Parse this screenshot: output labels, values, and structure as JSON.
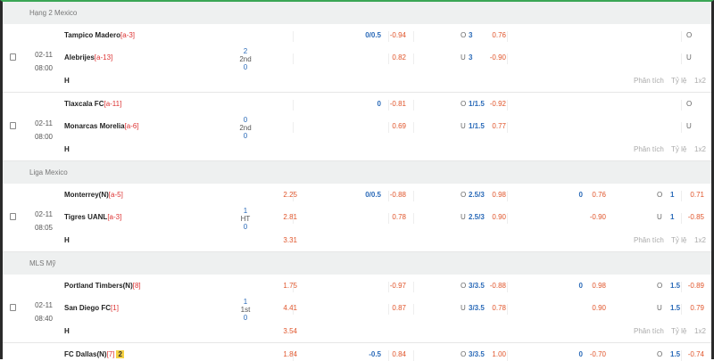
{
  "actions": {
    "analysis": "Phân tích",
    "odds": "Tỷ lệ",
    "x12": "1x2"
  },
  "blocks": [
    {
      "type": "section",
      "title": "Hạng 2 Mexico"
    },
    {
      "type": "match",
      "date": "02-11",
      "time": "08:00",
      "score": {
        "home": "2",
        "status": "2nd",
        "away": "0"
      },
      "lines": [
        {
          "team": "Tampico Madero",
          "rank": "[a-3]",
          "x12": "",
          "hdp_line": "0/0.5",
          "hdp_odds": "-0.94",
          "ou_label": "O",
          "ou_line": "3",
          "ou_odds": "0.76",
          "h1_hdp_line": "",
          "h1_hdp_odds": "",
          "h1_ou_label": "O",
          "h1_ou_line": "",
          "h1_ou_odds": ""
        },
        {
          "team": "Alebrijes",
          "rank": "[a-13]",
          "x12": "",
          "hdp_line": "",
          "hdp_odds": "0.82",
          "ou_label": "U",
          "ou_line": "3",
          "ou_odds": "-0.90",
          "h1_hdp_line": "",
          "h1_hdp_odds": "",
          "h1_ou_label": "U",
          "h1_ou_line": "",
          "h1_ou_odds": ""
        },
        {
          "team": "H",
          "rank": "",
          "x12": ""
        }
      ]
    },
    {
      "type": "match",
      "date": "02-11",
      "time": "08:00",
      "score": {
        "home": "0",
        "status": "2nd",
        "away": "0"
      },
      "lines": [
        {
          "team": "Tlaxcala FC",
          "rank": "[a-11]",
          "x12": "",
          "hdp_line": "0",
          "hdp_odds": "-0.81",
          "ou_label": "O",
          "ou_line": "1/1.5",
          "ou_odds": "-0.92",
          "h1_hdp_line": "",
          "h1_hdp_odds": "",
          "h1_ou_label": "O",
          "h1_ou_line": "",
          "h1_ou_odds": ""
        },
        {
          "team": "Monarcas Morelia",
          "rank": "[a-6]",
          "x12": "",
          "hdp_line": "",
          "hdp_odds": "0.69",
          "ou_label": "U",
          "ou_line": "1/1.5",
          "ou_odds": "0.77",
          "h1_hdp_line": "",
          "h1_hdp_odds": "",
          "h1_ou_label": "U",
          "h1_ou_line": "",
          "h1_ou_odds": ""
        },
        {
          "team": "H",
          "rank": "",
          "x12": ""
        }
      ]
    },
    {
      "type": "section",
      "title": "Liga Mexico"
    },
    {
      "type": "match",
      "date": "02-11",
      "time": "08:05",
      "score": {
        "home": "1",
        "status": "HT",
        "away": "0"
      },
      "lines": [
        {
          "team": "Monterrey(N)",
          "rank": "[a-5]",
          "x12": "2.25",
          "hdp_line": "0/0.5",
          "hdp_odds": "-0.88",
          "ou_label": "O",
          "ou_line": "2.5/3",
          "ou_odds": "0.98",
          "h1_hdp_line": "0",
          "h1_hdp_odds": "0.76",
          "h1_ou_label": "O",
          "h1_ou_line": "1",
          "h1_ou_odds": "0.71"
        },
        {
          "team": "Tigres UANL",
          "rank": "[a-3]",
          "x12": "2.81",
          "hdp_line": "",
          "hdp_odds": "0.78",
          "ou_label": "U",
          "ou_line": "2.5/3",
          "ou_odds": "0.90",
          "h1_hdp_line": "",
          "h1_hdp_odds": "-0.90",
          "h1_ou_label": "U",
          "h1_ou_line": "1",
          "h1_ou_odds": "-0.85"
        },
        {
          "team": "H",
          "rank": "",
          "x12": "3.31"
        }
      ]
    },
    {
      "type": "section",
      "title": "MLS Mỹ"
    },
    {
      "type": "match",
      "date": "02-11",
      "time": "08:40",
      "score": {
        "home": "1",
        "status": "1st",
        "away": "0"
      },
      "lines": [
        {
          "team": "Portland Timbers(N)",
          "rank": "[8]",
          "x12": "1.75",
          "hdp_line": "",
          "hdp_odds": "-0.97",
          "ou_label": "O",
          "ou_line": "3/3.5",
          "ou_odds": "-0.88",
          "h1_hdp_line": "0",
          "h1_hdp_odds": "0.98",
          "h1_ou_label": "O",
          "h1_ou_line": "1.5",
          "h1_ou_odds": "-0.89"
        },
        {
          "team": "San Diego FC",
          "rank": "[1]",
          "x12": "4.41",
          "hdp_line": "",
          "hdp_odds": "0.87",
          "ou_label": "U",
          "ou_line": "3/3.5",
          "ou_odds": "0.78",
          "h1_hdp_line": "",
          "h1_hdp_odds": "0.90",
          "h1_ou_label": "U",
          "h1_ou_line": "1.5",
          "h1_ou_odds": "0.79"
        },
        {
          "team": "H",
          "rank": "",
          "x12": "3.54"
        }
      ]
    },
    {
      "type": "match",
      "date": "",
      "time": "",
      "score": {
        "home": "",
        "status": "",
        "away": ""
      },
      "lines": [
        {
          "team": "FC Dallas(N)",
          "rank": "[7]",
          "badge": "2",
          "x12": "1.84",
          "hdp_line": "-0.5",
          "hdp_odds": "0.84",
          "ou_label": "O",
          "ou_line": "3/3.5",
          "ou_odds": "1.00",
          "h1_hdp_line": "0",
          "h1_hdp_odds": "-0.70",
          "h1_ou_label": "O",
          "h1_ou_line": "1.5",
          "h1_ou_odds": "-0.74"
        }
      ]
    }
  ]
}
